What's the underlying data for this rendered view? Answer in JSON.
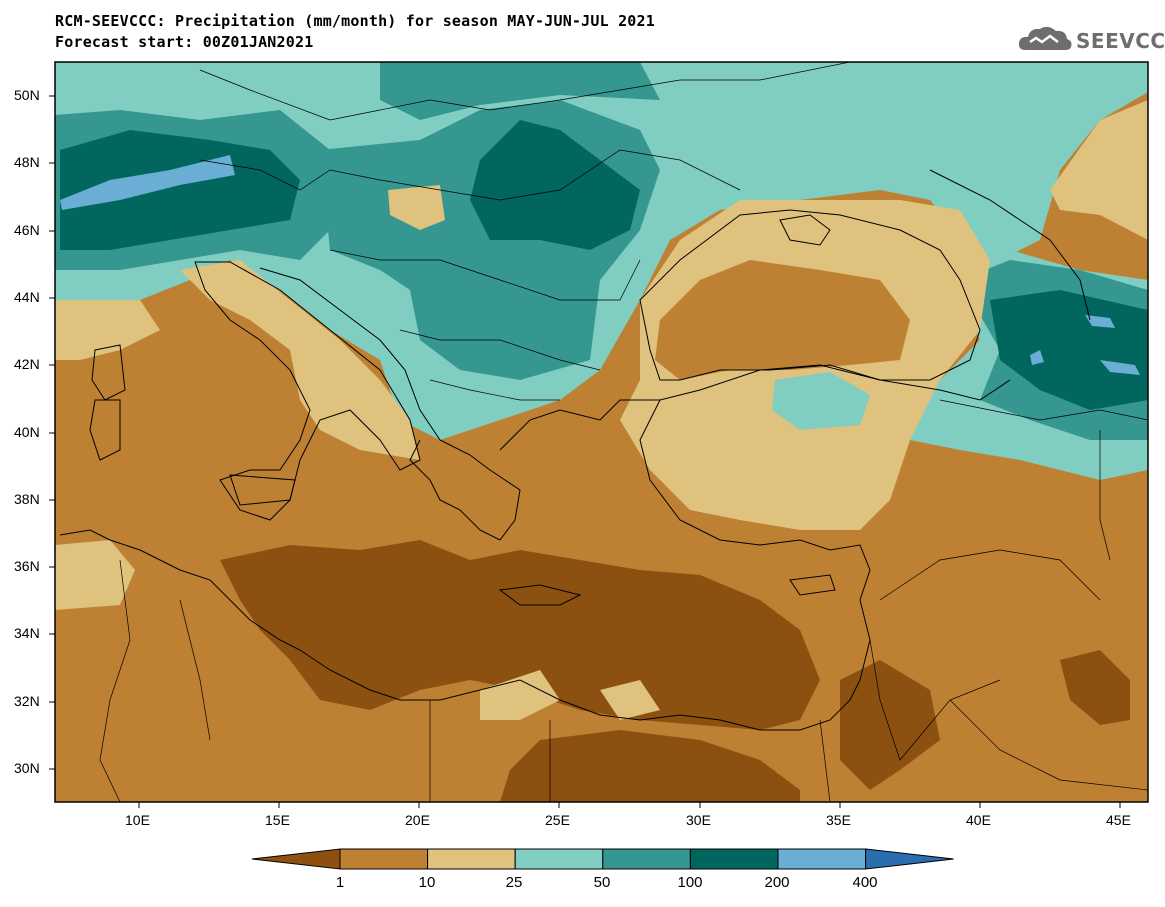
{
  "header": {
    "title": "RCM-SEEVCCC: Precipitation (mm/month) for season MAY-JUN-JUL 2021",
    "subtitle": "Forecast start: 00Z01JAN2021"
  },
  "logo": {
    "text": "SEEVCCC",
    "icon": "cloud-icon"
  },
  "map": {
    "lat_labels": [
      "50N",
      "48N",
      "46N",
      "44N",
      "42N",
      "40N",
      "38N",
      "36N",
      "34N",
      "32N",
      "30N"
    ],
    "lon_labels": [
      "10E",
      "15E",
      "20E",
      "25E",
      "30E",
      "35E",
      "40E",
      "45E"
    ]
  },
  "legend": {
    "ticks": [
      "1",
      "10",
      "25",
      "50",
      "100",
      "200",
      "400"
    ],
    "colors": [
      "#8c5110",
      "#be8133",
      "#dfc27e",
      "#80cdc1",
      "#35978f",
      "#01665e",
      "#6aaed6",
      "#2a6eaf"
    ]
  }
}
